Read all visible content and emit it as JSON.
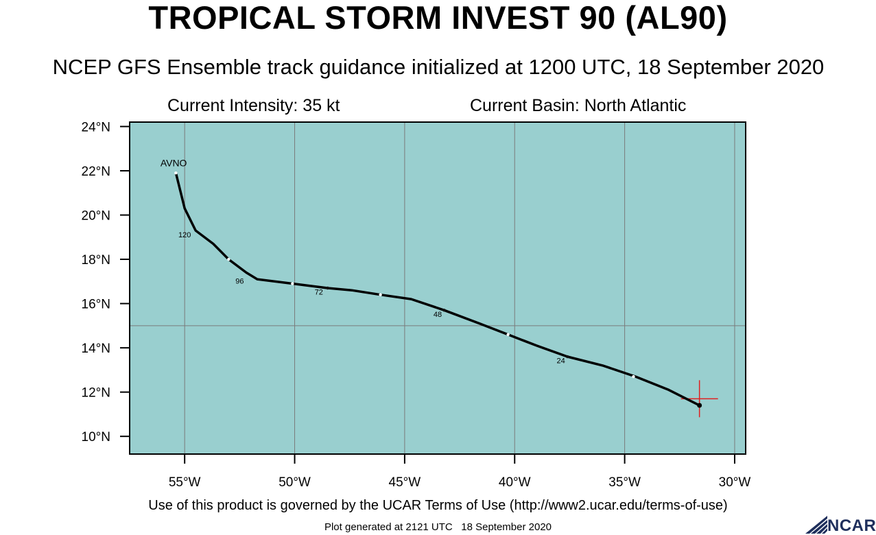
{
  "header": {
    "title": "TROPICAL STORM INVEST 90 (AL90)",
    "subtitle": "NCEP GFS Ensemble track guidance initialized at 1200 UTC, 18 September 2020",
    "current_intensity": "Current Intensity: 35 kt",
    "current_basin": "Current Basin: North Atlantic"
  },
  "footer": {
    "terms": "Use of this product is governed by the UCAR Terms of Use (http://www2.ucar.edu/terms-of-use)",
    "generated": "Plot generated at 2121 UTC   18 September 2020",
    "logo_text": "NCAR"
  },
  "colors": {
    "ocean": "#99cfcf",
    "track": "#000000",
    "grid": "#7a7a7a",
    "current_position_marker": "#e02020",
    "logo": "#1f2f5c"
  },
  "chart_data": {
    "type": "map-track",
    "xlim": [
      -57.5,
      -29.5
    ],
    "ylim": [
      9.2,
      24.2
    ],
    "x_ticks": [
      {
        "value": -55,
        "label": "55°W"
      },
      {
        "value": -50,
        "label": "50°W"
      },
      {
        "value": -45,
        "label": "45°W"
      },
      {
        "value": -40,
        "label": "40°W"
      },
      {
        "value": -35,
        "label": "35°W"
      },
      {
        "value": -30,
        "label": "30°W"
      }
    ],
    "y_ticks": [
      {
        "value": 24,
        "label": "24°N"
      },
      {
        "value": 22,
        "label": "22°N"
      },
      {
        "value": 20,
        "label": "20°N"
      },
      {
        "value": 18,
        "label": "18°N"
      },
      {
        "value": 16,
        "label": "16°N"
      },
      {
        "value": 14,
        "label": "14°N"
      },
      {
        "value": 12,
        "label": "12°N"
      },
      {
        "value": 10,
        "label": "10°N"
      }
    ],
    "grid_lon": [
      -55,
      -50,
      -45,
      -40,
      -35,
      -30
    ],
    "grid_lat": [
      15
    ],
    "grid": true,
    "series": [
      {
        "name": "AVNO",
        "points": [
          {
            "lon": -31.6,
            "lat": 11.4
          },
          {
            "lon": -33.0,
            "lat": 12.1
          },
          {
            "lon": -34.5,
            "lat": 12.7
          },
          {
            "lon": -36.0,
            "lat": 13.2
          },
          {
            "lon": -37.6,
            "lat": 13.6
          },
          {
            "lon": -39.0,
            "lat": 14.1
          },
          {
            "lon": -40.3,
            "lat": 14.6
          },
          {
            "lon": -41.6,
            "lat": 15.1
          },
          {
            "lon": -43.2,
            "lat": 15.7
          },
          {
            "lon": -44.7,
            "lat": 16.2
          },
          {
            "lon": -46.1,
            "lat": 16.4
          },
          {
            "lon": -47.4,
            "lat": 16.6
          },
          {
            "lon": -48.5,
            "lat": 16.7
          },
          {
            "lon": -50.1,
            "lat": 16.9
          },
          {
            "lon": -51.7,
            "lat": 17.1
          },
          {
            "lon": -52.2,
            "lat": 17.4
          },
          {
            "lon": -53.0,
            "lat": 18.0
          },
          {
            "lon": -53.7,
            "lat": 18.7
          },
          {
            "lon": -54.5,
            "lat": 19.3
          },
          {
            "lon": -55.0,
            "lat": 20.3
          },
          {
            "lon": -55.4,
            "lat": 21.9
          }
        ],
        "hour_markers": [
          {
            "lon": -34.6,
            "lat": 12.7,
            "style": "white"
          },
          {
            "lon": -37.6,
            "lat": 13.6,
            "style": "dark"
          },
          {
            "lon": -40.3,
            "lat": 14.6,
            "style": "white"
          },
          {
            "lon": -43.2,
            "lat": 15.7,
            "style": "dark"
          },
          {
            "lon": -46.1,
            "lat": 16.4,
            "style": "white"
          },
          {
            "lon": -48.5,
            "lat": 16.7,
            "style": "dark"
          },
          {
            "lon": -50.1,
            "lat": 16.9,
            "style": "white"
          },
          {
            "lon": -53.0,
            "lat": 18.0,
            "style": "white"
          },
          {
            "lon": -55.4,
            "lat": 21.9,
            "style": "white"
          }
        ],
        "hour_labels": [
          {
            "text": "24",
            "lon": -37.9,
            "lat": 13.3
          },
          {
            "text": "48",
            "lon": -43.5,
            "lat": 15.4
          },
          {
            "text": "72",
            "lon": -48.9,
            "lat": 16.4
          },
          {
            "text": "96",
            "lon": -52.5,
            "lat": 16.9
          },
          {
            "text": "120",
            "lon": -55.0,
            "lat": 19.0
          }
        ],
        "name_label": {
          "text": "AVNO",
          "lon": -55.5,
          "lat": 22.2
        }
      }
    ],
    "current_position": {
      "lon": -31.6,
      "lat": 11.7
    }
  }
}
